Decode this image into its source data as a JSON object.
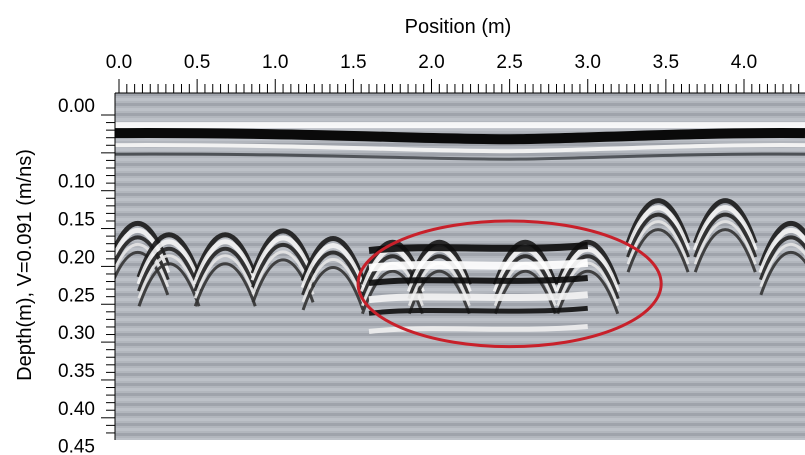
{
  "chart_data": {
    "type": "heatmap",
    "title": "",
    "xlabel": "Position (m)",
    "ylabel": "Depth(m), V=0.091 (m/ns)",
    "x_ticks": [
      "0.0",
      "0.5",
      "1.0",
      "1.5",
      "2.0",
      "2.5",
      "3.0",
      "3.5",
      "4.0"
    ],
    "x_tick_values": [
      0.0,
      0.5,
      1.0,
      1.5,
      2.0,
      2.5,
      3.0,
      3.5,
      4.0
    ],
    "y_ticks": [
      "0.00",
      "0.10",
      "0.15",
      "0.20",
      "0.25",
      "0.30",
      "0.35",
      "0.40",
      "0.45"
    ],
    "y_tick_values": [
      0.0,
      0.1,
      0.15,
      0.2,
      0.25,
      0.3,
      0.35,
      0.4,
      0.45
    ],
    "xlim": [
      0.0,
      4.4
    ],
    "ylim": [
      0.47,
      0.0
    ],
    "x_axis_position": "top",
    "colormap": "grayscale",
    "surface_reflection_depth": 0.02,
    "hyperbolas": [
      {
        "x": 0.12,
        "apex_depth": 0.12
      },
      {
        "x": 0.32,
        "apex_depth": 0.135
      },
      {
        "x": 0.68,
        "apex_depth": 0.135
      },
      {
        "x": 1.05,
        "apex_depth": 0.13
      },
      {
        "x": 1.37,
        "apex_depth": 0.14
      },
      {
        "x": 1.75,
        "apex_depth": 0.145
      },
      {
        "x": 2.05,
        "apex_depth": 0.145
      },
      {
        "x": 2.6,
        "apex_depth": 0.145
      },
      {
        "x": 3.0,
        "apex_depth": 0.145
      },
      {
        "x": 3.45,
        "apex_depth": 0.09
      },
      {
        "x": 3.88,
        "apex_depth": 0.09
      },
      {
        "x": 4.3,
        "apex_depth": 0.12
      }
    ],
    "annotation": {
      "shape": "ellipse",
      "color": "#c8202a",
      "center_x": 2.5,
      "center_depth": 0.223,
      "radius_x": 0.97,
      "radius_depth": 0.083
    }
  }
}
